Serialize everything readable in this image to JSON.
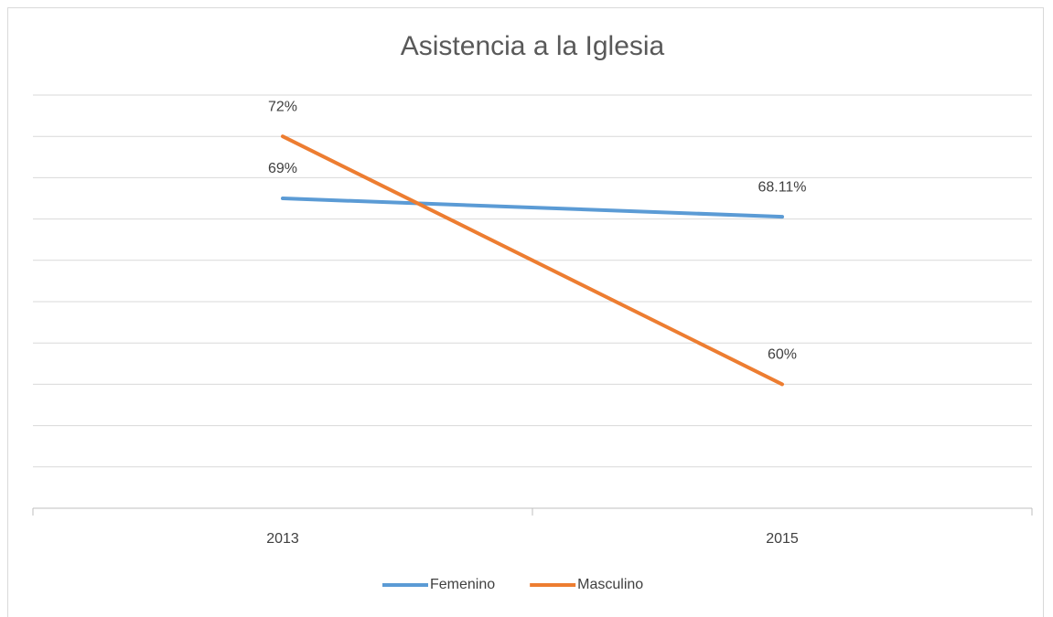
{
  "chart_data": {
    "type": "line",
    "title": "Asistencia a la Iglesia",
    "categories": [
      "2013",
      "2015"
    ],
    "series": [
      {
        "name": "Femenino",
        "color": "#5b9bd5",
        "values": [
          69,
          68.11
        ],
        "value_labels": [
          "69%",
          "68.11%"
        ]
      },
      {
        "name": "Masculino",
        "color": "#ed7d31",
        "values": [
          72,
          60
        ],
        "value_labels": [
          "72%",
          "60%"
        ]
      }
    ],
    "ylim": [
      54,
      74
    ],
    "yticks": [
      54,
      56,
      58,
      60,
      62,
      64,
      66,
      68,
      70,
      72,
      74
    ],
    "grid": true,
    "legend": "bottom"
  }
}
